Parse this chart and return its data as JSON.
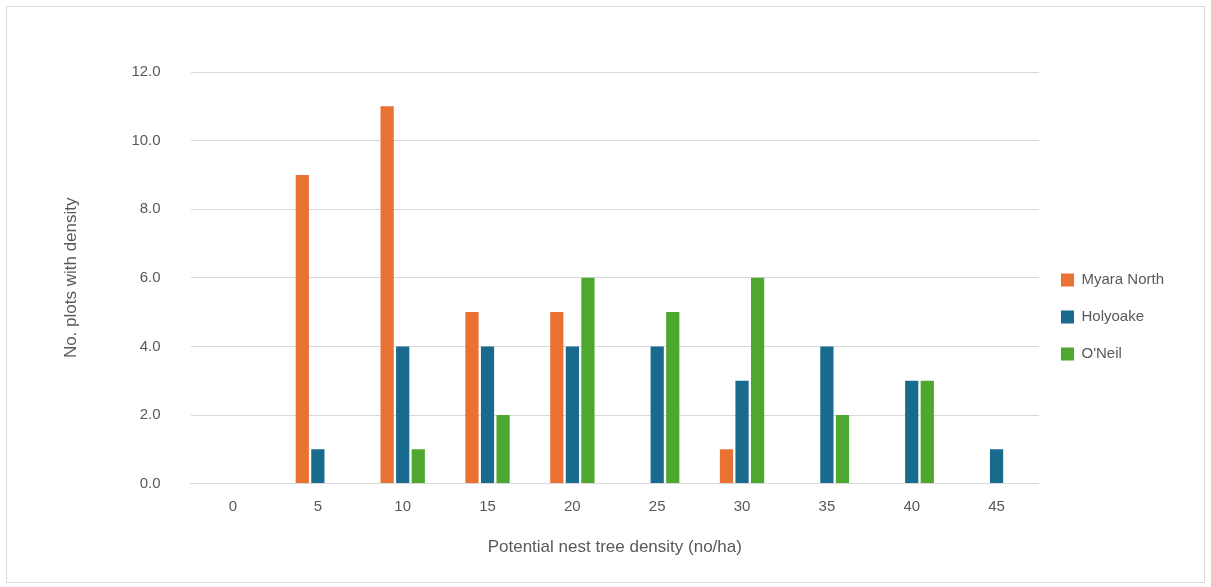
{
  "chart_data": {
    "type": "bar",
    "xlabel": "Potential nest tree density (no/ha)",
    "ylabel": "No. plots with density",
    "categories": [
      "0",
      "5",
      "10",
      "15",
      "20",
      "25",
      "30",
      "35",
      "40",
      "45"
    ],
    "series": [
      {
        "name": "Myara North",
        "color": "#e97132",
        "values": [
          0,
          9,
          11,
          5,
          5,
          0,
          1,
          0,
          0,
          0
        ]
      },
      {
        "name": "Holyoake",
        "color": "#196b8e",
        "values": [
          0,
          1,
          4,
          4,
          4,
          4,
          3,
          4,
          3,
          1
        ]
      },
      {
        "name": "O'Neil",
        "color": "#4ea72e",
        "values": [
          0,
          0,
          1,
          2,
          6,
          5,
          6,
          2,
          3,
          0
        ]
      }
    ],
    "ylim": [
      0,
      12
    ],
    "yticks": [
      {
        "value": 0,
        "label": "0.0"
      },
      {
        "value": 2,
        "label": "2.0"
      },
      {
        "value": 4,
        "label": "4.0"
      },
      {
        "value": 6,
        "label": "6.0"
      },
      {
        "value": 8,
        "label": "8.0"
      },
      {
        "value": 10,
        "label": "10.0"
      },
      {
        "value": 12,
        "label": "12.0"
      }
    ],
    "grid": "y",
    "legend": "right"
  }
}
